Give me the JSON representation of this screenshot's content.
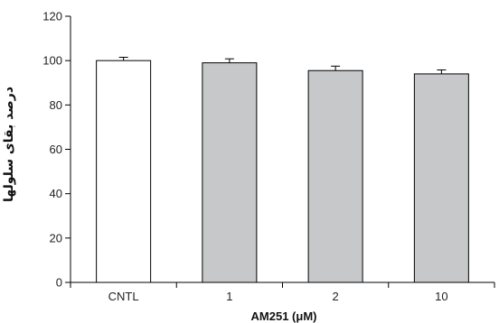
{
  "chart_data": {
    "type": "bar",
    "categories": [
      "CNTL",
      "1",
      "2",
      "10"
    ],
    "values": [
      100,
      99,
      95.5,
      94
    ],
    "errors": [
      1.5,
      1.8,
      2.0,
      1.8
    ],
    "xlabel": "AM251 (μM)",
    "ylabel": "درصد بقای سلولها",
    "ylim": [
      0,
      120
    ],
    "yticks": [
      0,
      20,
      40,
      60,
      80,
      100,
      120
    ],
    "grid": false,
    "bar_colors": [
      "#ffffff",
      "#c7c8ca",
      "#c7c8ca",
      "#c7c8ca"
    ],
    "bar_edge_color": "#000000"
  }
}
